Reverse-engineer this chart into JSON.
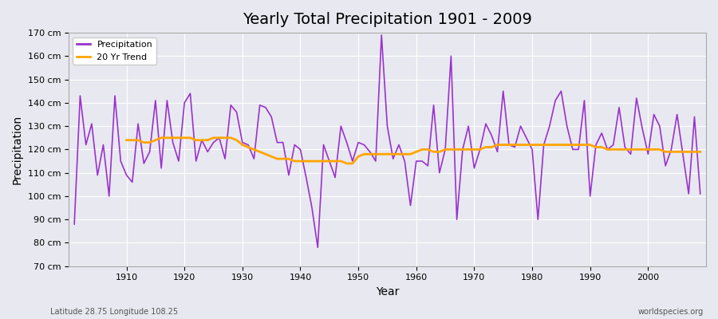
{
  "title": "Yearly Total Precipitation 1901 - 2009",
  "xlabel": "Year",
  "ylabel": "Precipitation",
  "background_color": "#e8e8f0",
  "plot_bg_color": "#e8e8f0",
  "precipitation_color": "#9932CC",
  "trend_color": "#FFA500",
  "ylim": [
    70,
    170
  ],
  "yticks": [
    70,
    80,
    90,
    100,
    110,
    120,
    130,
    140,
    150,
    160,
    170
  ],
  "ytick_labels": [
    "70 cm",
    "80 cm",
    "90 cm",
    "100 cm",
    "110 cm",
    "120 cm",
    "130 cm",
    "140 cm",
    "150 cm",
    "160 cm",
    "170 cm"
  ],
  "years": [
    1901,
    1902,
    1903,
    1904,
    1905,
    1906,
    1907,
    1908,
    1909,
    1910,
    1911,
    1912,
    1913,
    1914,
    1915,
    1916,
    1917,
    1918,
    1919,
    1920,
    1921,
    1922,
    1923,
    1924,
    1925,
    1926,
    1927,
    1928,
    1929,
    1930,
    1931,
    1932,
    1933,
    1934,
    1935,
    1936,
    1937,
    1938,
    1939,
    1940,
    1941,
    1942,
    1943,
    1944,
    1945,
    1946,
    1947,
    1948,
    1949,
    1950,
    1951,
    1952,
    1953,
    1954,
    1955,
    1956,
    1957,
    1958,
    1959,
    1960,
    1961,
    1962,
    1963,
    1964,
    1965,
    1966,
    1967,
    1968,
    1969,
    1970,
    1971,
    1972,
    1973,
    1974,
    1975,
    1976,
    1977,
    1978,
    1979,
    1980,
    1981,
    1982,
    1983,
    1984,
    1985,
    1986,
    1987,
    1988,
    1989,
    1990,
    1991,
    1992,
    1993,
    1994,
    1995,
    1996,
    1997,
    1998,
    1999,
    2000,
    2001,
    2002,
    2003,
    2004,
    2005,
    2006,
    2007,
    2008,
    2009
  ],
  "precipitation": [
    88,
    143,
    122,
    131,
    109,
    122,
    100,
    143,
    115,
    109,
    106,
    131,
    114,
    119,
    141,
    112,
    141,
    123,
    115,
    140,
    144,
    115,
    124,
    119,
    123,
    125,
    116,
    139,
    136,
    123,
    122,
    116,
    139,
    138,
    134,
    123,
    123,
    109,
    122,
    120,
    108,
    95,
    78,
    122,
    115,
    108,
    130,
    123,
    115,
    123,
    122,
    119,
    115,
    169,
    130,
    116,
    122,
    115,
    96,
    115,
    115,
    113,
    139,
    110,
    120,
    160,
    90,
    120,
    130,
    112,
    120,
    131,
    126,
    119,
    145,
    122,
    121,
    130,
    125,
    120,
    90,
    122,
    130,
    141,
    145,
    130,
    120,
    120,
    141,
    100,
    122,
    127,
    120,
    122,
    138,
    121,
    118,
    142,
    129,
    118,
    135,
    130,
    113,
    120,
    135,
    118,
    101,
    134,
    101
  ],
  "trend": [
    null,
    null,
    null,
    null,
    null,
    null,
    null,
    null,
    null,
    124,
    124,
    124,
    123,
    123,
    124,
    125,
    125,
    125,
    125,
    125,
    125,
    124,
    124,
    124,
    125,
    125,
    125,
    125,
    124,
    122,
    121,
    120,
    119,
    118,
    117,
    116,
    116,
    116,
    115,
    115,
    115,
    115,
    115,
    115,
    115,
    115,
    115,
    114,
    114,
    117,
    118,
    118,
    118,
    118,
    118,
    118,
    118,
    118,
    118,
    119,
    120,
    120,
    119,
    119,
    120,
    120,
    120,
    120,
    120,
    120,
    120,
    121,
    121,
    122,
    122,
    122,
    122,
    122,
    122,
    122,
    122,
    122,
    122,
    122,
    122,
    122,
    122,
    122,
    122,
    122,
    121,
    121,
    120,
    120,
    120,
    120,
    120,
    120,
    120,
    120,
    120,
    120,
    119,
    119,
    119,
    119,
    119,
    119,
    119
  ],
  "footnote_left": "Latitude 28.75 Longitude 108.25",
  "footnote_right": "worldspecies.org"
}
